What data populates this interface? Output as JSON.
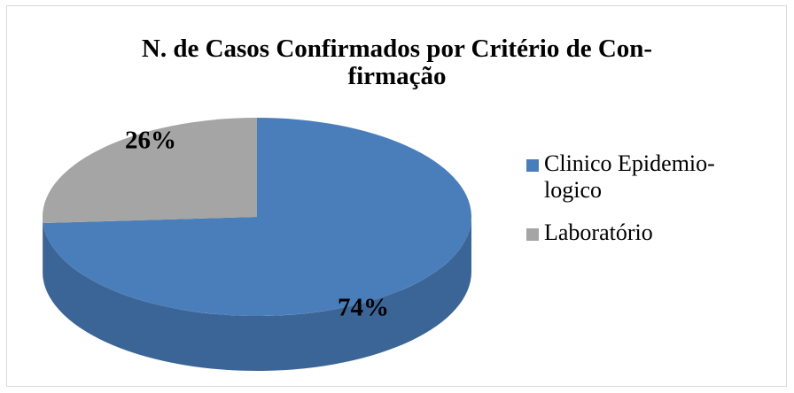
{
  "chart_data": {
    "type": "pie",
    "title": "N. de Casos Confirmados por Critério de Con-firmação",
    "categories": [
      "Clinico Epidemio-logico",
      "Laboratório"
    ],
    "values": [
      74,
      26
    ],
    "value_labels": [
      "74%",
      "26%"
    ],
    "colors": [
      "#4a7ebb",
      "#a5a5a5"
    ],
    "legend": "right"
  }
}
